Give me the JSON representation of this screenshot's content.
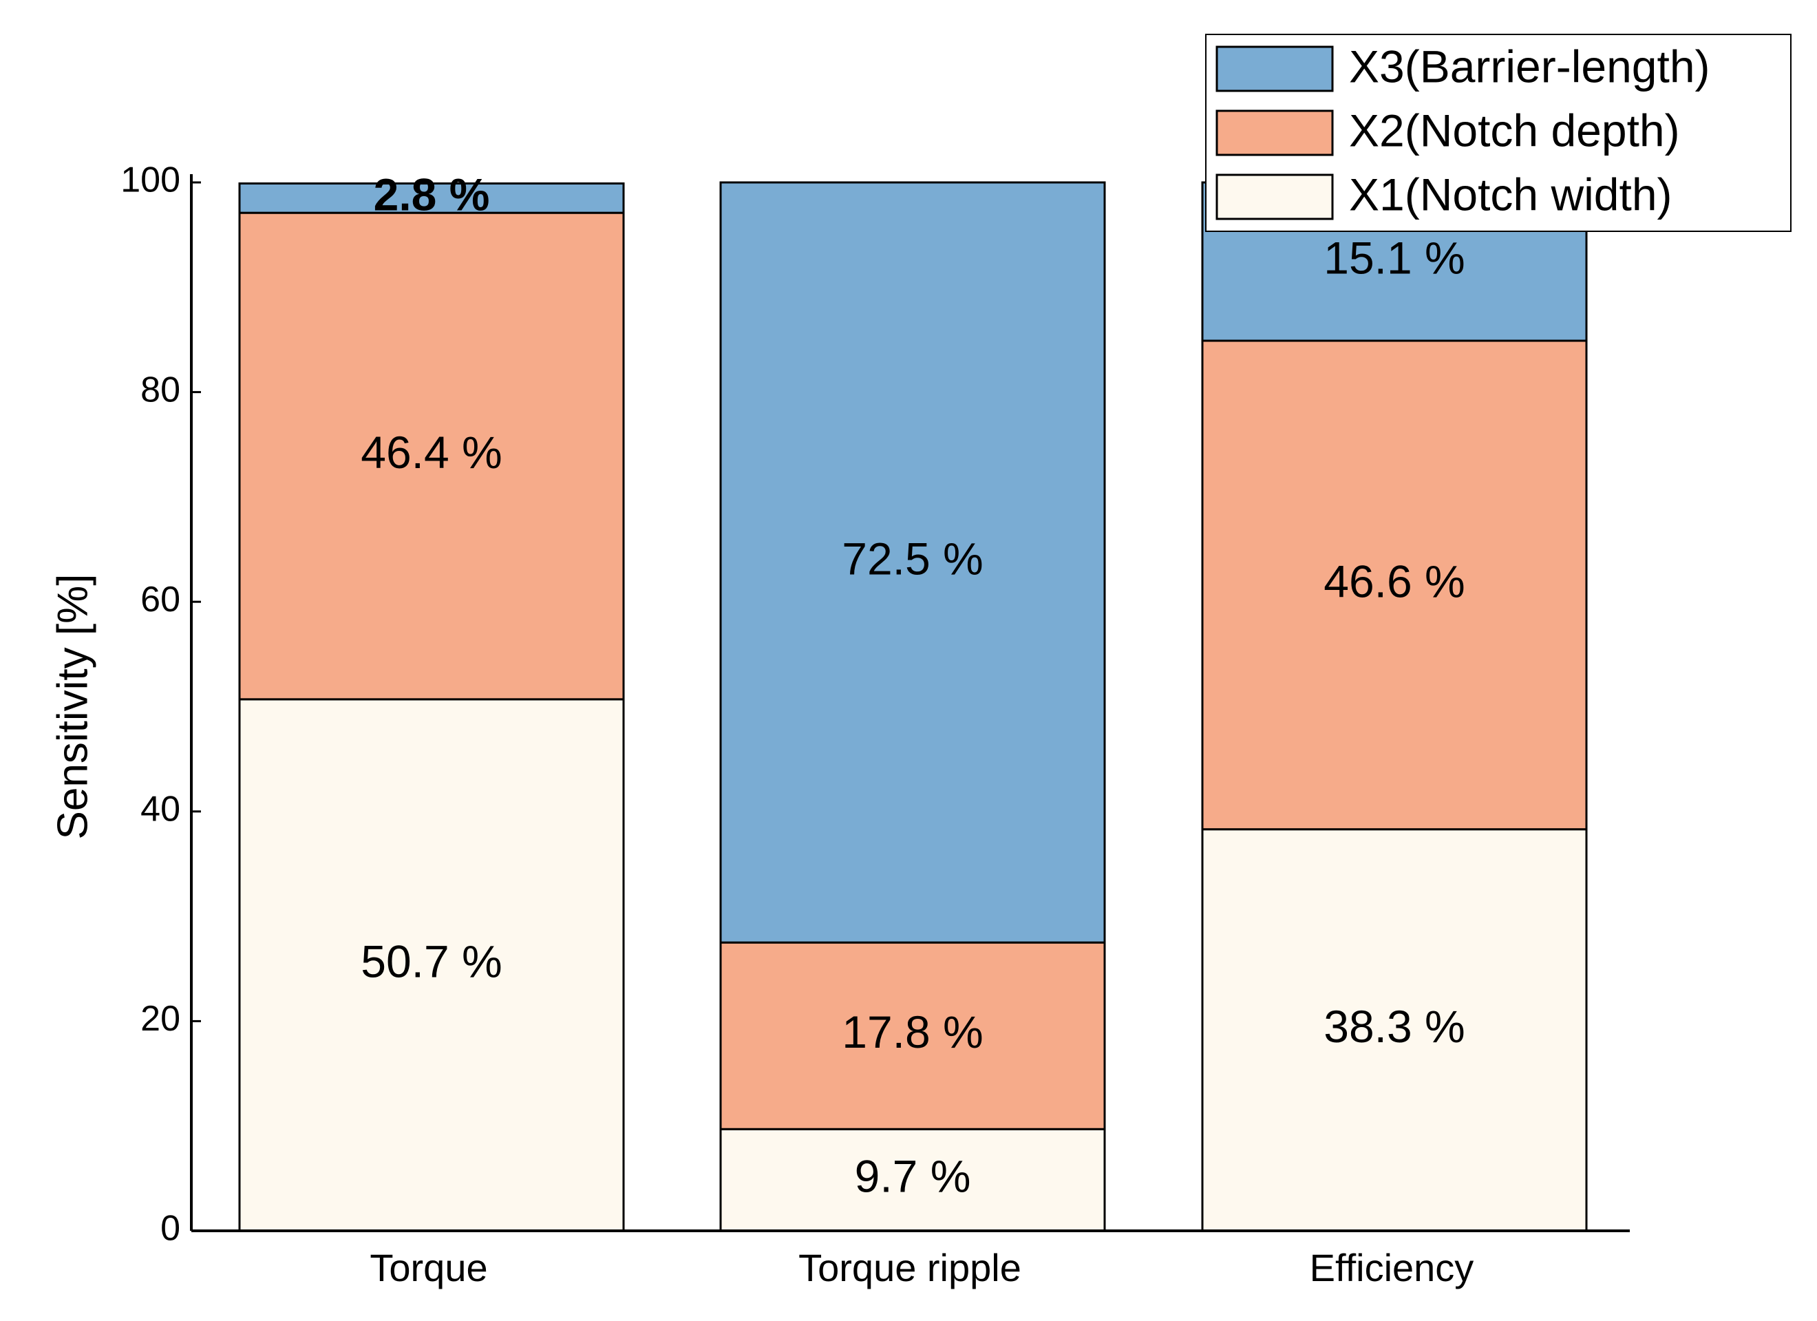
{
  "chart_data": {
    "type": "bar",
    "stacked": true,
    "title": "",
    "xlabel": "",
    "ylabel": "Sensitivity [%]",
    "ylim": [
      0,
      100
    ],
    "yticks": [
      "0",
      "20",
      "40",
      "60",
      "80",
      "100"
    ],
    "categories": [
      "Torque",
      "Torque ripple",
      "Efficiency"
    ],
    "series": [
      {
        "name": "X1(Notch width)",
        "color": "#FEF9EF",
        "values": [
          50.7,
          9.7,
          38.3
        ],
        "labels": [
          "50.7 %",
          "9.7 %",
          "38.3 %"
        ]
      },
      {
        "name": "X2(Notch depth)",
        "color": "#F6AB8A",
        "values": [
          46.4,
          17.8,
          46.6
        ],
        "labels": [
          "46.4 %",
          "17.8 %",
          "46.6 %"
        ]
      },
      {
        "name": "X3(Barrier-length)",
        "color": "#7AACD3",
        "values": [
          2.8,
          72.5,
          15.1
        ],
        "labels": [
          "2.8 %",
          "72.5 %",
          "15.1 %"
        ]
      }
    ],
    "legend": {
      "position": "top-right",
      "order": [
        "X3(Barrier-length)",
        "X2(Notch depth)",
        "X1(Notch width)"
      ]
    },
    "grid": false
  }
}
